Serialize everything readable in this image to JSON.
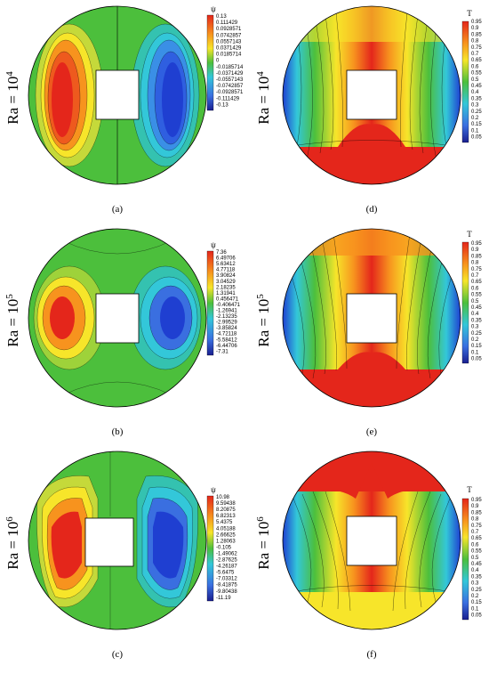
{
  "panels": [
    {
      "id": "a",
      "kind": "streamfunction",
      "caption": "(a)",
      "ra_base": "Ra = 10",
      "ra_exp": "4",
      "legend_title": "ψ",
      "legend_values": [
        "0.13",
        "0.111429",
        "0.0928571",
        "0.0742857",
        "0.0557143",
        "0.0371429",
        "0.0185714",
        "0",
        "-0.0185714",
        "-0.0371429",
        "-0.0557143",
        "-0.0742857",
        "-0.0928571",
        "-0.111429",
        "-0.13"
      ]
    },
    {
      "id": "b",
      "kind": "streamfunction",
      "caption": "(b)",
      "ra_base": "Ra = 10",
      "ra_exp": "5",
      "legend_title": "ψ",
      "legend_values": [
        "7.36",
        "6.49706",
        "5.63412",
        "4.77118",
        "3.90824",
        "3.04529",
        "2.18235",
        "1.31941",
        "0.456471",
        "-0.406471",
        "-1.26941",
        "-2.13235",
        "-2.99529",
        "-3.85824",
        "-4.72118",
        "-5.58412",
        "-6.44706",
        "-7.31"
      ]
    },
    {
      "id": "c",
      "kind": "streamfunction",
      "caption": "(c)",
      "ra_base": "Ra = 10",
      "ra_exp": "6",
      "legend_title": "ψ",
      "legend_values": [
        "10.98",
        "9.59438",
        "8.20875",
        "6.82313",
        "5.4375",
        "4.05188",
        "2.66625",
        "1.28063",
        "-0.105",
        "-1.49062",
        "-2.87625",
        "-4.26187",
        "-5.6475",
        "-7.03312",
        "-8.41875",
        "-9.80438",
        "-11.19"
      ]
    },
    {
      "id": "d",
      "kind": "temperature",
      "caption": "(d)",
      "ra_base": "Ra = 10",
      "ra_exp": "4",
      "legend_title": "T",
      "legend_values": [
        "0.95",
        "0.9",
        "0.85",
        "0.8",
        "0.75",
        "0.7",
        "0.65",
        "0.6",
        "0.55",
        "0.5",
        "0.45",
        "0.4",
        "0.35",
        "0.3",
        "0.25",
        "0.2",
        "0.15",
        "0.1",
        "0.05"
      ]
    },
    {
      "id": "e",
      "kind": "temperature",
      "caption": "(e)",
      "ra_base": "Ra = 10",
      "ra_exp": "5",
      "legend_title": "T",
      "legend_values": [
        "0.95",
        "0.9",
        "0.85",
        "0.8",
        "0.75",
        "0.7",
        "0.65",
        "0.6",
        "0.55",
        "0.5",
        "0.45",
        "0.4",
        "0.35",
        "0.3",
        "0.25",
        "0.2",
        "0.15",
        "0.1",
        "0.05"
      ]
    },
    {
      "id": "f",
      "kind": "temperature",
      "caption": "(f)",
      "ra_base": "Ra = 10",
      "ra_exp": "6",
      "legend_title": "T",
      "legend_values": [
        "0.95",
        "0.9",
        "0.85",
        "0.8",
        "0.75",
        "0.7",
        "0.65",
        "0.6",
        "0.55",
        "0.5",
        "0.45",
        "0.4",
        "0.35",
        "0.3",
        "0.25",
        "0.2",
        "0.15",
        "0.1",
        "0.05"
      ]
    }
  ],
  "colors": {
    "red": "#e4261b",
    "orange": "#f7931e",
    "yellow": "#f7e52a",
    "green": "#4cbf3c",
    "cyan": "#33c7d9",
    "blue": "#1f3fd1",
    "navy": "#1a1f8f"
  }
}
